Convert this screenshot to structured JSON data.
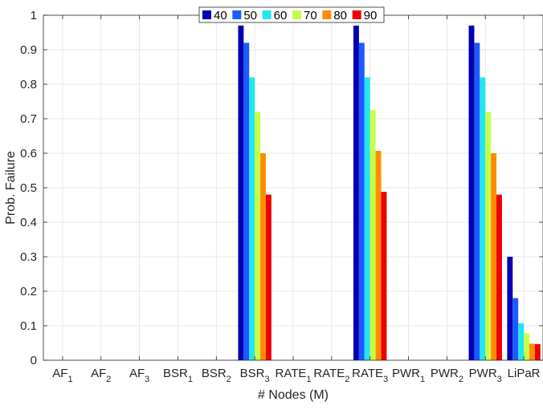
{
  "chart_data": {
    "type": "bar",
    "categories": [
      {
        "base": "AF",
        "sub": "1"
      },
      {
        "base": "AF",
        "sub": "2"
      },
      {
        "base": "AF",
        "sub": "3"
      },
      {
        "base": "BSR",
        "sub": "1"
      },
      {
        "base": "BSR",
        "sub": "2"
      },
      {
        "base": "BSR",
        "sub": "3"
      },
      {
        "base": "RATE",
        "sub": "1"
      },
      {
        "base": "RATE",
        "sub": "2"
      },
      {
        "base": "RATE",
        "sub": "3"
      },
      {
        "base": "PWR",
        "sub": "1"
      },
      {
        "base": "PWR",
        "sub": "2"
      },
      {
        "base": "PWR",
        "sub": "3"
      },
      {
        "base": "LiPaR",
        "sub": ""
      }
    ],
    "series": [
      {
        "name": "40",
        "color": "#0000b3",
        "values": [
          0,
          0,
          0,
          0,
          0,
          0.97,
          0,
          0,
          0.97,
          0,
          0,
          0.97,
          0.3
        ]
      },
      {
        "name": "50",
        "color": "#1a5cff",
        "values": [
          0,
          0,
          0,
          0,
          0,
          0.92,
          0,
          0,
          0.92,
          0,
          0,
          0.92,
          0.18
        ]
      },
      {
        "name": "60",
        "color": "#22e6f0",
        "values": [
          0,
          0,
          0,
          0,
          0,
          0.82,
          0,
          0,
          0.82,
          0,
          0,
          0.82,
          0.107
        ]
      },
      {
        "name": "70",
        "color": "#c6ff4a",
        "values": [
          0,
          0,
          0,
          0,
          0,
          0.72,
          0,
          0,
          0.725,
          0,
          0,
          0.72,
          0.078
        ]
      },
      {
        "name": "80",
        "color": "#ff8c00",
        "values": [
          0,
          0,
          0,
          0,
          0,
          0.6,
          0,
          0,
          0.607,
          0,
          0,
          0.6,
          0.048
        ]
      },
      {
        "name": "90",
        "color": "#ee0000",
        "values": [
          0,
          0,
          0,
          0,
          0,
          0.48,
          0,
          0,
          0.488,
          0,
          0,
          0.48,
          0.047
        ]
      }
    ],
    "ylim": [
      0,
      1
    ],
    "yticks": [
      "0",
      "0.1",
      "0.2",
      "0.3",
      "0.4",
      "0.5",
      "0.6",
      "0.7",
      "0.8",
      "0.9",
      "1"
    ],
    "xlabel": "# Nodes (M)",
    "ylabel": "Prob. Failure",
    "grid": true,
    "legend_position": "top-center",
    "legend_orientation": "horizontal"
  }
}
